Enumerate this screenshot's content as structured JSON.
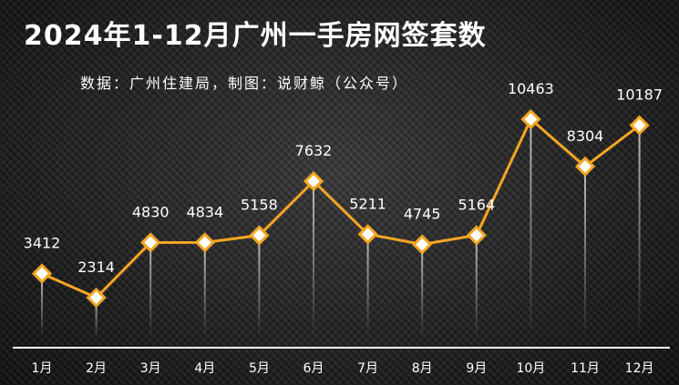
{
  "chart_data": {
    "type": "line",
    "title": "2024年1-12月广州一手房网签套数",
    "subtitle": "数据：广州住建局，制图：说财鲸（公众号）",
    "categories": [
      "1月",
      "2月",
      "3月",
      "4月",
      "5月",
      "6月",
      "7月",
      "8月",
      "9月",
      "10月",
      "11月",
      "12月"
    ],
    "series": [
      {
        "values": [
          3412,
          2314,
          4830,
          4834,
          5158,
          7632,
          5211,
          4745,
          5164,
          10463,
          8304,
          10187
        ]
      }
    ],
    "xlabel": "",
    "ylabel": "",
    "data_labels": true,
    "grid": false,
    "legend": "none",
    "colors": {
      "line": "#f5a623",
      "marker_fill": "#ffffff",
      "text": "#ffffff",
      "drop_line": "#c8c8c8"
    }
  }
}
